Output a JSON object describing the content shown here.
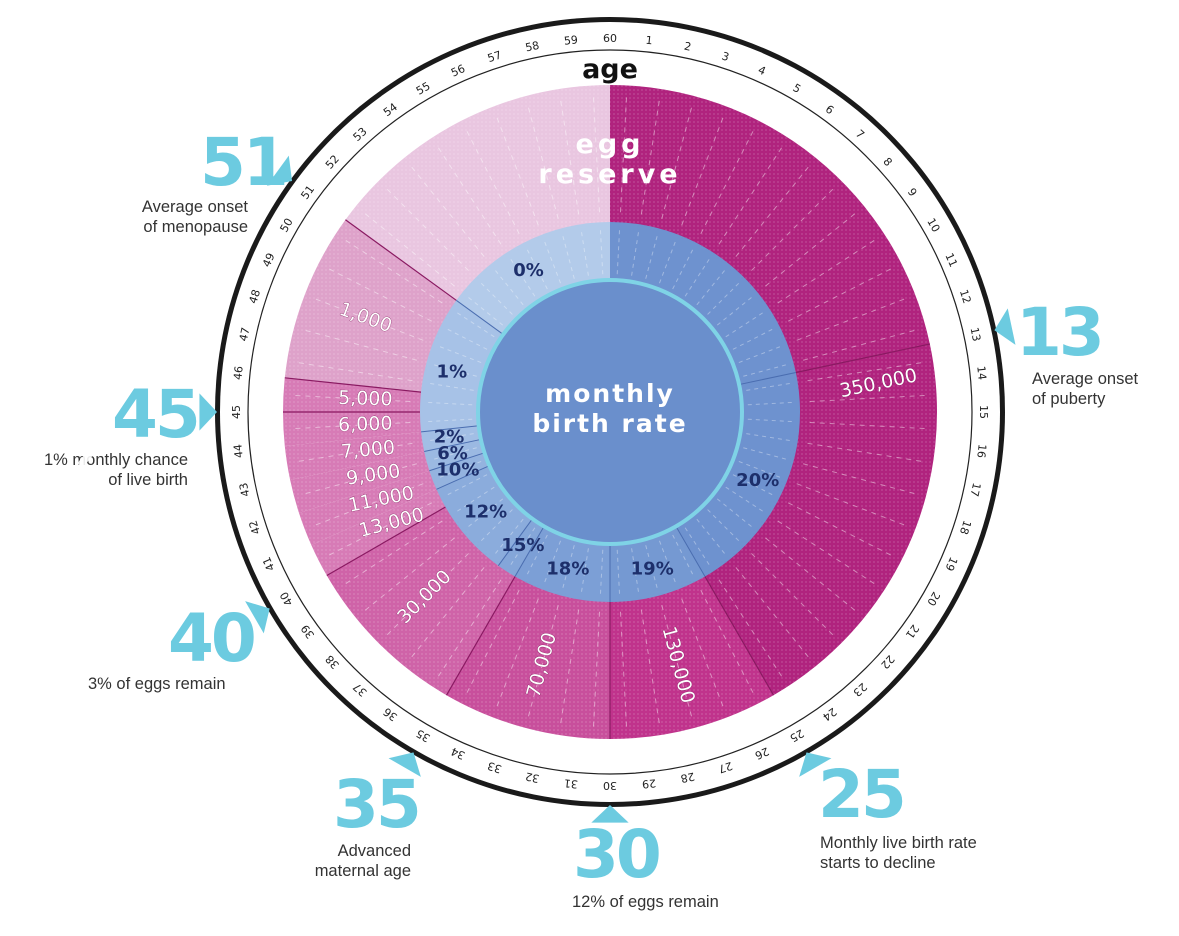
{
  "chart_data": {
    "type": "pie",
    "title": "age",
    "rings": {
      "outer_label": "egg reserve",
      "inner_label": "monthly birth rate"
    },
    "age_ticks": [
      "60",
      "1",
      "2",
      "3",
      "4",
      "5",
      "6",
      "7",
      "8",
      "9",
      "10",
      "11",
      "12",
      "13",
      "14",
      "15",
      "16",
      "17",
      "18",
      "19",
      "20",
      "21",
      "22",
      "23",
      "24",
      "25",
      "26",
      "27",
      "28",
      "29",
      "30",
      "31",
      "32",
      "33",
      "34",
      "35",
      "36",
      "37",
      "38",
      "39",
      "40",
      "41",
      "42",
      "43",
      "44",
      "45",
      "46",
      "47",
      "48",
      "49",
      "50",
      "51",
      "52",
      "53",
      "54",
      "55",
      "56",
      "57",
      "58",
      "59"
    ],
    "egg_reserve_segments": [
      {
        "age_start": 0,
        "age_end": 13,
        "value": "",
        "color": "#b0237e"
      },
      {
        "age_start": 13,
        "age_end": 25,
        "value": "350,000",
        "color": "#b0237e"
      },
      {
        "age_start": 25,
        "age_end": 30,
        "value": "130,000",
        "color": "#c0338c"
      },
      {
        "age_start": 30,
        "age_end": 35,
        "value": "70,000",
        "color": "#c84f9c"
      },
      {
        "age_start": 35,
        "age_end": 40,
        "value": "30,000",
        "color": "#cf63a8"
      },
      {
        "age_start": 40,
        "age_end": 41,
        "value": "13,000",
        "color": "#d77bb6"
      },
      {
        "age_start": 41,
        "age_end": 42,
        "value": "11,000",
        "color": "#d77bb6"
      },
      {
        "age_start": 42,
        "age_end": 43,
        "value": "9,000",
        "color": "#d77bb6"
      },
      {
        "age_start": 43,
        "age_end": 44,
        "value": "7,000",
        "color": "#d77bb6"
      },
      {
        "age_start": 44,
        "age_end": 45,
        "value": "6,000",
        "color": "#d77bb6"
      },
      {
        "age_start": 45,
        "age_end": 46,
        "value": "5,000",
        "color": "#d77bb6"
      },
      {
        "age_start": 46,
        "age_end": 51,
        "value": "1,000",
        "color": "#dea2ca"
      },
      {
        "age_start": 51,
        "age_end": 60,
        "value": "",
        "color": "#e9c6e0"
      }
    ],
    "birth_rate_segments": [
      {
        "age_start": 0,
        "age_end": 13,
        "value": "",
        "color": "#6e92cf"
      },
      {
        "age_start": 13,
        "age_end": 25,
        "value": "20%",
        "color": "#6e92cf"
      },
      {
        "age_start": 25,
        "age_end": 30,
        "value": "19%",
        "color": "#7599d2"
      },
      {
        "age_start": 30,
        "age_end": 35,
        "value": "18%",
        "color": "#7c9fd6"
      },
      {
        "age_start": 35,
        "age_end": 36,
        "value": "15%",
        "color": "#84a6d9"
      },
      {
        "age_start": 36,
        "age_end": 41,
        "value": "12%",
        "color": "#8bacdc"
      },
      {
        "age_start": 41,
        "age_end": 42,
        "value": "10%",
        "color": "#94b3df"
      },
      {
        "age_start": 42,
        "age_end": 43,
        "value": "6%",
        "color": "#9bb9e2"
      },
      {
        "age_start": 43,
        "age_end": 44,
        "value": "2%",
        "color": "#a2bee5"
      },
      {
        "age_start": 44,
        "age_end": 51,
        "value": "1%",
        "color": "#a7c2e7"
      },
      {
        "age_start": 51,
        "age_end": 60,
        "value": "0%",
        "color": "#b3cbea"
      }
    ],
    "callouts": [
      {
        "age": "51",
        "text": [
          "Average onset",
          "of menopause"
        ]
      },
      {
        "age": "13",
        "text": [
          "Average onset",
          "of puberty"
        ]
      },
      {
        "age": "45",
        "text": [
          "1% monthly chance",
          "of live birth"
        ]
      },
      {
        "age": "40",
        "text": [
          "3% of eggs remain"
        ]
      },
      {
        "age": "35",
        "text": [
          "Advanced",
          "maternal age"
        ]
      },
      {
        "age": "30",
        "text": [
          "12% of eggs remain"
        ]
      },
      {
        "age": "25",
        "text": [
          "Monthly live birth rate",
          "starts to decline"
        ]
      }
    ],
    "colors": {
      "callout_accent": "#6ccbe0",
      "center_fill": "#6a8fcc",
      "inner_ring_border": "#7fd3e6",
      "label_dark": "#1d2f6b"
    }
  },
  "navigation": {
    "prev_icon": "chevron-left-icon",
    "next_icon": "chevron-right-icon"
  }
}
